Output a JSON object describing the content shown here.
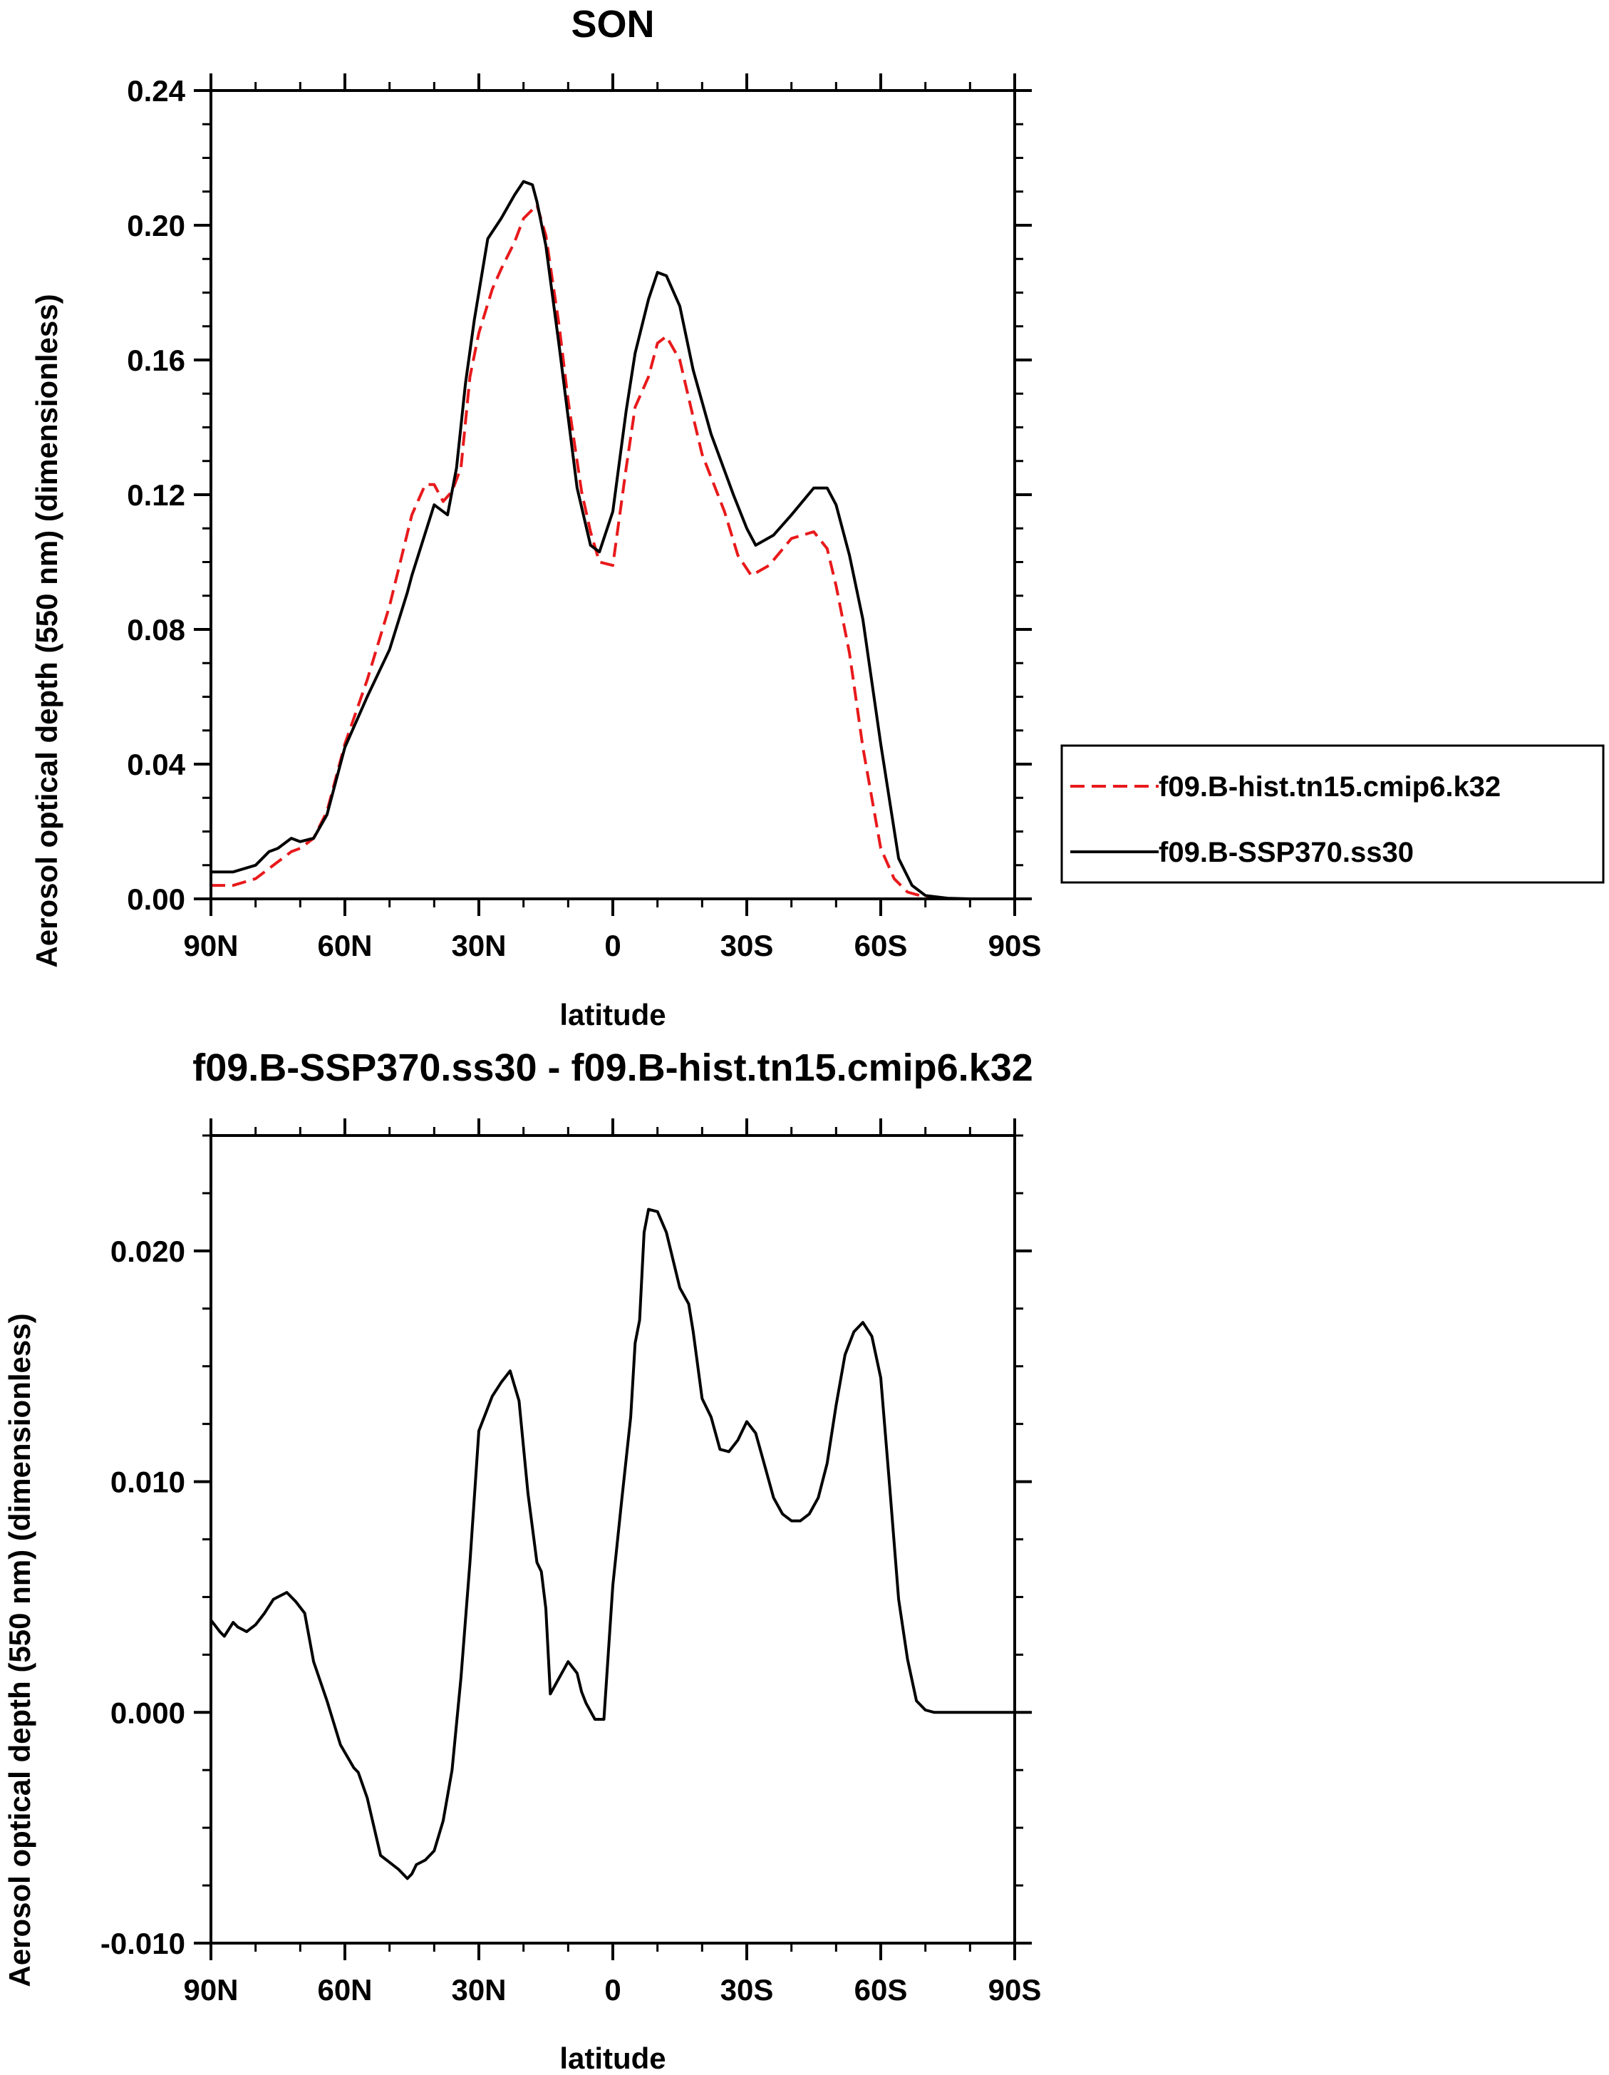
{
  "chart_data": [
    {
      "type": "line",
      "title": "SON",
      "xlabel": "latitude",
      "ylabel": "Aerosol optical depth (550 nm) (dimensionless)",
      "xlim": [
        90,
        -90
      ],
      "ylim": [
        0,
        0.24
      ],
      "xticks": [
        90,
        60,
        30,
        0,
        -30,
        -60,
        -90
      ],
      "xtick_labels": [
        "90N",
        "60N",
        "30N",
        "0",
        "30S",
        "60S",
        "90S"
      ],
      "yticks": [
        0,
        0.04,
        0.08,
        0.12,
        0.16,
        0.2,
        0.24
      ],
      "ytick_labels": [
        "0.00",
        "0.04",
        "0.08",
        "0.12",
        "0.16",
        "0.20",
        "0.24"
      ],
      "legend_position": "right",
      "series": [
        {
          "name": "f09.B-hist.tn15.cmip6.k32",
          "color": "#e8191b",
          "dash": "dashed",
          "x": [
            90,
            85,
            80,
            75,
            72,
            70,
            67,
            64,
            60,
            55,
            50,
            45,
            42,
            40,
            38,
            36,
            34,
            32,
            30,
            27,
            25,
            22,
            20,
            17,
            15,
            12,
            10,
            7,
            5,
            3,
            0,
            -3,
            -5,
            -8,
            -10,
            -12,
            -15,
            -18,
            -20,
            -25,
            -28,
            -31,
            -35,
            -40,
            -45,
            -48,
            -50,
            -53,
            -56,
            -60,
            -63,
            -66,
            -70,
            -75,
            -80,
            -90
          ],
          "y": [
            0.004,
            0.004,
            0.006,
            0.011,
            0.014,
            0.015,
            0.018,
            0.026,
            0.046,
            0.065,
            0.087,
            0.114,
            0.123,
            0.123,
            0.118,
            0.121,
            0.128,
            0.155,
            0.168,
            0.181,
            0.187,
            0.195,
            0.202,
            0.206,
            0.197,
            0.17,
            0.148,
            0.121,
            0.109,
            0.1,
            0.099,
            0.128,
            0.146,
            0.155,
            0.165,
            0.167,
            0.16,
            0.143,
            0.132,
            0.115,
            0.102,
            0.096,
            0.099,
            0.107,
            0.109,
            0.104,
            0.093,
            0.073,
            0.045,
            0.015,
            0.006,
            0.002,
            0.0005,
            0,
            0,
            0
          ]
        },
        {
          "name": "f09.B-SSP370.ss30",
          "color": "#000000",
          "dash": "solid",
          "x": [
            90,
            85,
            80,
            77,
            75,
            72,
            70,
            67,
            64,
            60,
            55,
            50,
            46,
            45,
            40,
            37,
            35,
            33,
            31,
            28,
            25,
            22,
            20,
            18,
            17,
            15,
            12,
            10,
            8,
            5,
            3,
            0,
            -3,
            -5,
            -8,
            -10,
            -12,
            -15,
            -18,
            -22,
            -27,
            -30,
            -32,
            -36,
            -40,
            -45,
            -48,
            -50,
            -53,
            -56,
            -60,
            -64,
            -67,
            -70,
            -75,
            -80,
            -90
          ],
          "y": [
            0.008,
            0.008,
            0.01,
            0.014,
            0.015,
            0.018,
            0.017,
            0.018,
            0.025,
            0.045,
            0.06,
            0.074,
            0.091,
            0.096,
            0.117,
            0.114,
            0.128,
            0.153,
            0.172,
            0.196,
            0.202,
            0.209,
            0.213,
            0.212,
            0.207,
            0.194,
            0.164,
            0.143,
            0.122,
            0.105,
            0.103,
            0.115,
            0.145,
            0.162,
            0.178,
            0.186,
            0.185,
            0.176,
            0.157,
            0.138,
            0.12,
            0.11,
            0.105,
            0.108,
            0.114,
            0.122,
            0.122,
            0.117,
            0.102,
            0.083,
            0.046,
            0.012,
            0.004,
            0.001,
            0.0002,
            0,
            0
          ]
        }
      ]
    },
    {
      "type": "line",
      "title": "f09.B-SSP370.ss30 - f09.B-hist.tn15.cmip6.k32",
      "xlabel": "latitude",
      "ylabel": "Aerosol optical depth (550 nm) (dimensionless)",
      "xlim": [
        90,
        -90
      ],
      "ylim": [
        -0.01,
        0.025
      ],
      "xticks": [
        90,
        60,
        30,
        0,
        -30,
        -60,
        -90
      ],
      "xtick_labels": [
        "90N",
        "60N",
        "30N",
        "0",
        "30S",
        "60S",
        "90S"
      ],
      "yticks": [
        -0.01,
        0,
        0.01,
        0.02
      ],
      "ytick_labels": [
        "-0.010",
        "0.000",
        "0.010",
        "0.020"
      ],
      "series": [
        {
          "color": "#000000",
          "dash": "solid",
          "x": [
            90,
            88,
            87,
            85,
            84,
            82,
            80,
            78,
            76,
            75,
            73,
            71,
            69,
            67,
            64,
            61,
            58,
            57,
            55,
            52,
            50,
            48,
            46,
            45,
            44,
            42,
            40,
            38,
            36,
            34,
            32,
            30,
            27,
            25,
            23,
            21,
            19,
            17,
            16,
            15,
            14,
            12,
            10,
            8,
            7,
            6,
            4,
            2,
            0,
            -2,
            -4,
            -5,
            -6,
            -7,
            -8,
            -10,
            -12,
            -15,
            -17,
            -18,
            -20,
            -22,
            -24,
            -26,
            -28,
            -30,
            -32,
            -34,
            -36,
            -38,
            -40,
            -42,
            -44,
            -46,
            -48,
            -50,
            -52,
            -54,
            -56,
            -58,
            -60,
            -62,
            -64,
            -66,
            -68,
            -70,
            -72,
            -75,
            -80,
            -90
          ],
          "y": [
            0.004,
            0.0035,
            0.0033,
            0.0039,
            0.0037,
            0.0035,
            0.0038,
            0.0043,
            0.0049,
            0.005,
            0.0052,
            0.0048,
            0.0043,
            0.0022,
            0.0005,
            -0.0014,
            -0.0024,
            -0.0026,
            -0.0037,
            -0.0062,
            -0.0065,
            -0.0068,
            -0.0072,
            -0.007,
            -0.0066,
            -0.0064,
            -0.006,
            -0.0047,
            -0.0025,
            0.0015,
            0.0065,
            0.0122,
            0.0137,
            0.0143,
            0.0148,
            0.0135,
            0.0095,
            0.0065,
            0.0061,
            0.0045,
            0.0008,
            0.0015,
            0.0022,
            0.0017,
            0.0009,
            0.0004,
            -0.0003,
            -0.0003,
            0.0055,
            0.0092,
            0.0128,
            0.016,
            0.017,
            0.0208,
            0.0218,
            0.0217,
            0.0208,
            0.0184,
            0.0177,
            0.0165,
            0.0136,
            0.0128,
            0.0114,
            0.0113,
            0.0118,
            0.0126,
            0.0121,
            0.0107,
            0.0093,
            0.0086,
            0.0083,
            0.0083,
            0.0086,
            0.0093,
            0.0108,
            0.0133,
            0.0155,
            0.0165,
            0.0169,
            0.0163,
            0.0145,
            0.0098,
            0.0049,
            0.0023,
            0.0005,
            0.0001,
            0,
            0,
            0,
            0
          ]
        }
      ]
    }
  ]
}
